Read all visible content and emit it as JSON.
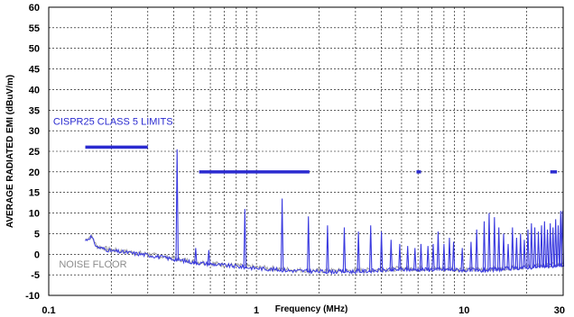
{
  "chart_data": {
    "type": "line",
    "title": "",
    "xlabel": "Frequency (MHz)",
    "ylabel": "AVERAGE RADIATED EMI (dBuV/m)",
    "xscale": "log",
    "xlim": [
      0.1,
      30
    ],
    "ylim": [
      -10,
      60
    ],
    "grid": true,
    "x_tick_labels": [
      {
        "value": 0.1,
        "label": "0.1"
      },
      {
        "value": 1,
        "label": "1"
      },
      {
        "value": 10,
        "label": "10"
      },
      {
        "value": 30,
        "label": "30"
      }
    ],
    "y_ticks": [
      -10,
      -5,
      0,
      5,
      10,
      15,
      20,
      25,
      30,
      35,
      40,
      45,
      50,
      55,
      60
    ],
    "y_tick_labels": [
      "-10",
      "-5",
      "0",
      "5",
      "10",
      "15",
      "20",
      "25",
      "30",
      "35",
      "40",
      "45",
      "50",
      "55",
      "60"
    ],
    "annotations": [
      {
        "text": "CISPR25 CLASS 5 LIMITS",
        "x": 0.105,
        "y": 31.5,
        "color": "#2b2bd0"
      },
      {
        "text": "NOISE FLOOR",
        "x": 0.112,
        "y": -3.2,
        "color": "#8c8c8c"
      }
    ],
    "limit_segments": [
      {
        "x": [
          0.15,
          0.3
        ],
        "y": 26
      },
      {
        "x": [
          0.53,
          1.8
        ],
        "y": 20
      },
      {
        "x": [
          5.9,
          6.2
        ],
        "y": 20
      },
      {
        "x": [
          26,
          28
        ],
        "y": 20
      }
    ],
    "noise_floor": {
      "x": [
        0.15,
        0.16,
        0.17,
        0.2,
        0.25,
        0.3,
        0.4,
        0.5,
        0.7,
        1.0,
        1.5,
        2.0,
        3.0,
        5.0,
        8.0,
        12,
        20,
        30
      ],
      "y": [
        3.5,
        4.5,
        2.0,
        1.0,
        0.5,
        0.0,
        -1.0,
        -1.8,
        -2.5,
        -3.2,
        -3.8,
        -4.0,
        -4.0,
        -3.5,
        -3.5,
        -3.8,
        -3.0,
        -2.5
      ]
    },
    "emission_peaks": [
      {
        "x": 0.415,
        "y": 25.5
      },
      {
        "x": 0.51,
        "y": 1.5
      },
      {
        "x": 0.59,
        "y": 1.0
      },
      {
        "x": 0.88,
        "y": 11
      },
      {
        "x": 1.33,
        "y": 13.5
      },
      {
        "x": 1.78,
        "y": 9.2
      },
      {
        "x": 2.2,
        "y": 7.0
      },
      {
        "x": 2.65,
        "y": 6.5
      },
      {
        "x": 3.1,
        "y": 5.5
      },
      {
        "x": 3.55,
        "y": 7.0
      },
      {
        "x": 4.0,
        "y": 5.5
      },
      {
        "x": 4.45,
        "y": 3.5
      },
      {
        "x": 4.9,
        "y": 2.5
      },
      {
        "x": 5.35,
        "y": 2.0
      },
      {
        "x": 5.8,
        "y": 1.5
      },
      {
        "x": 6.2,
        "y": 2.5
      },
      {
        "x": 6.7,
        "y": 2.0
      },
      {
        "x": 7.1,
        "y": 2.5
      },
      {
        "x": 7.5,
        "y": 5.5
      },
      {
        "x": 8.0,
        "y": 2.5
      },
      {
        "x": 8.5,
        "y": 4.0
      },
      {
        "x": 8.9,
        "y": 3.0
      },
      {
        "x": 9.8,
        "y": 1.5
      },
      {
        "x": 10.8,
        "y": 3.0
      },
      {
        "x": 11.5,
        "y": 6.0
      },
      {
        "x": 12.5,
        "y": 8.0
      },
      {
        "x": 13.2,
        "y": 10
      },
      {
        "x": 14.0,
        "y": 9.0
      },
      {
        "x": 14.7,
        "y": 6.5
      },
      {
        "x": 15.5,
        "y": 5.0
      },
      {
        "x": 16.3,
        "y": 2.5
      },
      {
        "x": 17.1,
        "y": 6.5
      },
      {
        "x": 17.9,
        "y": 4.0
      },
      {
        "x": 18.7,
        "y": 5.0
      },
      {
        "x": 19.5,
        "y": 3.5
      },
      {
        "x": 20.3,
        "y": 6.0
      },
      {
        "x": 21.1,
        "y": 7.5
      },
      {
        "x": 21.9,
        "y": 6.5
      },
      {
        "x": 22.8,
        "y": 5.5
      },
      {
        "x": 23.6,
        "y": 7.0
      },
      {
        "x": 24.4,
        "y": 8.0
      },
      {
        "x": 25.2,
        "y": 6.0
      },
      {
        "x": 26.0,
        "y": 7.5
      },
      {
        "x": 26.8,
        "y": 6.5
      },
      {
        "x": 27.6,
        "y": 8.5
      },
      {
        "x": 28.4,
        "y": 7.0
      },
      {
        "x": 29.2,
        "y": 10.5
      },
      {
        "x": 29.8,
        "y": 10.5
      }
    ],
    "colors": {
      "limit": "#2b2bd0",
      "emission": "#3a3adf",
      "noise": "#a0a0a0",
      "limit_label": "#2b2bd0",
      "noise_label": "#8c8c8c"
    }
  }
}
